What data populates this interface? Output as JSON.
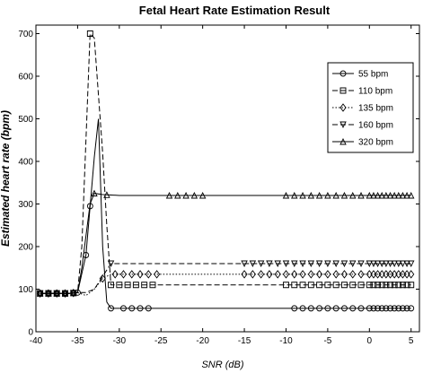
{
  "chart_data": {
    "type": "line",
    "title": "Fetal Heart Rate Estimation Result",
    "xlabel": "SNR (dB)",
    "ylabel": "Estimated heart rate (bpm)",
    "xlim": [
      -40,
      6
    ],
    "ylim": [
      0,
      720
    ],
    "xticks": [
      -40,
      -35,
      -30,
      -25,
      -20,
      -15,
      -10,
      -5,
      0,
      5
    ],
    "yticks": [
      0,
      100,
      200,
      300,
      400,
      500,
      600,
      700
    ],
    "grid": false,
    "legend_position": "top-right",
    "series": [
      {
        "name": "55 bpm",
        "marker": "circle",
        "dash": "none",
        "points": [
          [
            -39.5,
            90
          ],
          [
            -36,
            90
          ],
          [
            -35,
            92
          ],
          [
            -34,
            180
          ],
          [
            -33,
            410
          ],
          [
            -32.5,
            500
          ],
          [
            -32,
            200
          ],
          [
            -31.5,
            70
          ],
          [
            -31,
            55
          ],
          [
            -30,
            55
          ],
          [
            -25,
            55
          ],
          [
            -20,
            55
          ],
          [
            -15,
            55
          ],
          [
            -10,
            55
          ],
          [
            -5,
            55
          ],
          [
            0,
            55
          ],
          [
            5,
            55
          ]
        ],
        "marker_x": [
          -39.5,
          -38.5,
          -37.5,
          -36.5,
          -35.5,
          -35,
          -34,
          -33.5,
          -31,
          -29.5,
          -28.5,
          -27.5,
          -26.5,
          -9,
          -8,
          -7,
          -6,
          -5,
          -4,
          -3,
          -2,
          -1,
          0,
          0.5,
          1,
          1.5,
          2,
          2.5,
          3,
          3.5,
          4,
          4.5,
          5
        ]
      },
      {
        "name": "110 bpm",
        "marker": "square",
        "dash": "dashed",
        "points": [
          [
            -39.5,
            90
          ],
          [
            -36,
            90
          ],
          [
            -35,
            92
          ],
          [
            -34.5,
            200
          ],
          [
            -33.5,
            700
          ],
          [
            -33,
            690
          ],
          [
            -32,
            420
          ],
          [
            -31.5,
            250
          ],
          [
            -31,
            110
          ],
          [
            -30,
            110
          ],
          [
            -25,
            110
          ],
          [
            -20,
            110
          ],
          [
            -15,
            110
          ],
          [
            -10,
            110
          ],
          [
            -5,
            110
          ],
          [
            0,
            110
          ],
          [
            5,
            110
          ]
        ],
        "marker_x": [
          -39.5,
          -38.5,
          -37.5,
          -36.5,
          -35.5,
          -33.5,
          -31,
          -30,
          -29,
          -28,
          -27,
          -26,
          -10,
          -9,
          -8,
          -7,
          -6,
          -5,
          -4,
          -3,
          -2,
          -1,
          0,
          0.5,
          1,
          1.5,
          2,
          2.5,
          3,
          3.5,
          4,
          4.5,
          5
        ]
      },
      {
        "name": "135 bpm",
        "marker": "diamond",
        "dash": "dotted",
        "points": [
          [
            -39.5,
            90
          ],
          [
            -36,
            90
          ],
          [
            -35,
            92
          ],
          [
            -34,
            85
          ],
          [
            -33,
            100
          ],
          [
            -32,
            125
          ],
          [
            -31,
            135
          ],
          [
            -30,
            135
          ],
          [
            -25,
            135
          ],
          [
            -20,
            135
          ],
          [
            -15,
            135
          ],
          [
            -10,
            135
          ],
          [
            -5,
            135
          ],
          [
            0,
            135
          ],
          [
            5,
            135
          ]
        ],
        "marker_x": [
          -39.5,
          -38.5,
          -37.5,
          -36.5,
          -35.5,
          -32,
          -30.5,
          -29.5,
          -28.5,
          -27.5,
          -26.5,
          -25.5,
          -15,
          -14,
          -13,
          -12,
          -11,
          -10,
          -9,
          -8,
          -7,
          -6,
          -5,
          -4,
          -3,
          -2,
          -1,
          0,
          0.5,
          1,
          1.5,
          2,
          2.5,
          3,
          3.5,
          4,
          4.5,
          5
        ]
      },
      {
        "name": "160 bpm",
        "marker": "triangle-down",
        "dash": "dashed",
        "points": [
          [
            -39.5,
            90
          ],
          [
            -36,
            90
          ],
          [
            -35,
            92
          ],
          [
            -34,
            92
          ],
          [
            -33,
            100
          ],
          [
            -32,
            130
          ],
          [
            -31,
            160
          ],
          [
            -30,
            160
          ],
          [
            -25,
            160
          ],
          [
            -20,
            160
          ],
          [
            -15,
            160
          ],
          [
            -10,
            160
          ],
          [
            -5,
            160
          ],
          [
            0,
            160
          ],
          [
            5,
            160
          ]
        ],
        "marker_x": [
          -39.5,
          -38.5,
          -37.5,
          -36.5,
          -35.5,
          -31,
          -15,
          -14,
          -13,
          -12,
          -11,
          -10,
          -9,
          -8,
          -7,
          -6,
          -5,
          -4,
          -3,
          -2,
          -1,
          0,
          0.5,
          1,
          1.5,
          2,
          2.5,
          3,
          3.5,
          4,
          4.5,
          5
        ]
      },
      {
        "name": "320 bpm",
        "marker": "triangle-up",
        "dash": "none",
        "points": [
          [
            -39.5,
            90
          ],
          [
            -36,
            90
          ],
          [
            -35,
            92
          ],
          [
            -34.5,
            150
          ],
          [
            -33.5,
            300
          ],
          [
            -33,
            325
          ],
          [
            -32,
            322
          ],
          [
            -30,
            320
          ],
          [
            -25,
            320
          ],
          [
            -20,
            320
          ],
          [
            -15,
            320
          ],
          [
            -10,
            320
          ],
          [
            -5,
            320
          ],
          [
            0,
            320
          ],
          [
            5,
            320
          ]
        ],
        "marker_x": [
          -39.5,
          -38.5,
          -37.5,
          -36.5,
          -35.5,
          -33,
          -31.5,
          -24,
          -23,
          -22,
          -21,
          -20,
          -10,
          -9,
          -8,
          -7,
          -6,
          -5,
          -4,
          -3,
          -2,
          -1,
          0,
          0.5,
          1,
          1.5,
          2,
          2.5,
          3,
          3.5,
          4,
          4.5,
          5
        ]
      }
    ]
  }
}
